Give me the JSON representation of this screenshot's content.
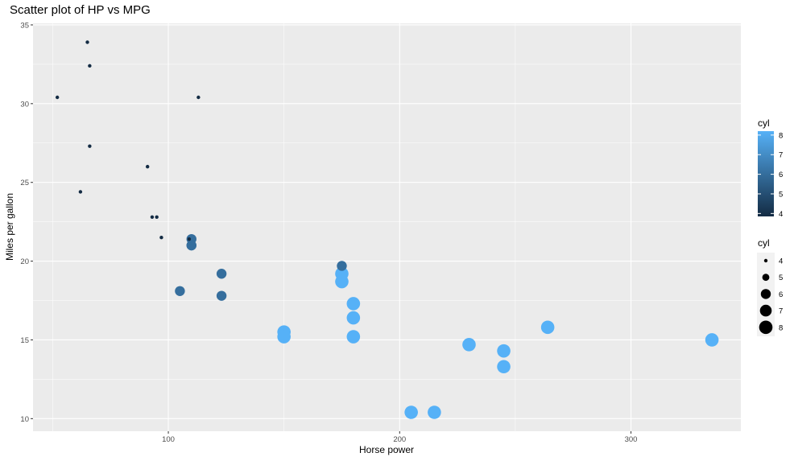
{
  "chart_data": {
    "type": "scatter",
    "title": "Scatter plot of HP vs MPG",
    "xlabel": "Horse power",
    "ylabel": "Miles per gallon",
    "xlim": [
      41.5,
      347.5
    ],
    "ylim": [
      9.2,
      35.1
    ],
    "xticks": [
      100,
      200,
      300
    ],
    "yticks": [
      10,
      15,
      20,
      25,
      30,
      35
    ],
    "grid": true,
    "points": [
      {
        "x": 110,
        "y": 21.0,
        "cyl": 6
      },
      {
        "x": 110,
        "y": 21.0,
        "cyl": 6
      },
      {
        "x": 93,
        "y": 22.8,
        "cyl": 4
      },
      {
        "x": 110,
        "y": 21.4,
        "cyl": 6
      },
      {
        "x": 175,
        "y": 18.7,
        "cyl": 8
      },
      {
        "x": 105,
        "y": 18.1,
        "cyl": 6
      },
      {
        "x": 245,
        "y": 14.3,
        "cyl": 8
      },
      {
        "x": 62,
        "y": 24.4,
        "cyl": 4
      },
      {
        "x": 95,
        "y": 22.8,
        "cyl": 4
      },
      {
        "x": 123,
        "y": 19.2,
        "cyl": 6
      },
      {
        "x": 123,
        "y": 17.8,
        "cyl": 6
      },
      {
        "x": 180,
        "y": 16.4,
        "cyl": 8
      },
      {
        "x": 180,
        "y": 17.3,
        "cyl": 8
      },
      {
        "x": 180,
        "y": 15.2,
        "cyl": 8
      },
      {
        "x": 205,
        "y": 10.4,
        "cyl": 8
      },
      {
        "x": 215,
        "y": 10.4,
        "cyl": 8
      },
      {
        "x": 230,
        "y": 14.7,
        "cyl": 8
      },
      {
        "x": 66,
        "y": 32.4,
        "cyl": 4
      },
      {
        "x": 52,
        "y": 30.4,
        "cyl": 4
      },
      {
        "x": 65,
        "y": 33.9,
        "cyl": 4
      },
      {
        "x": 97,
        "y": 21.5,
        "cyl": 4
      },
      {
        "x": 150,
        "y": 15.5,
        "cyl": 8
      },
      {
        "x": 150,
        "y": 15.2,
        "cyl": 8
      },
      {
        "x": 245,
        "y": 13.3,
        "cyl": 8
      },
      {
        "x": 175,
        "y": 19.2,
        "cyl": 8
      },
      {
        "x": 66,
        "y": 27.3,
        "cyl": 4
      },
      {
        "x": 91,
        "y": 26.0,
        "cyl": 4
      },
      {
        "x": 113,
        "y": 30.4,
        "cyl": 4
      },
      {
        "x": 264,
        "y": 15.8,
        "cyl": 8
      },
      {
        "x": 175,
        "y": 19.7,
        "cyl": 6
      },
      {
        "x": 335,
        "y": 15.0,
        "cyl": 8
      },
      {
        "x": 109,
        "y": 21.4,
        "cyl": 4
      }
    ],
    "legends": [
      {
        "title": "cyl",
        "kind": "color",
        "labels": [
          "8",
          "7",
          "6",
          "5",
          "4"
        ],
        "low_color": "#132B43",
        "high_color": "#56B1F7"
      },
      {
        "title": "cyl",
        "kind": "size",
        "labels": [
          "4",
          "5",
          "6",
          "7",
          "8"
        ]
      }
    ],
    "legend_position": "right",
    "colors": {
      "panel": "#ebebeb",
      "grid": "#ffffff",
      "low": "#132B43",
      "high": "#56B1F7"
    }
  }
}
